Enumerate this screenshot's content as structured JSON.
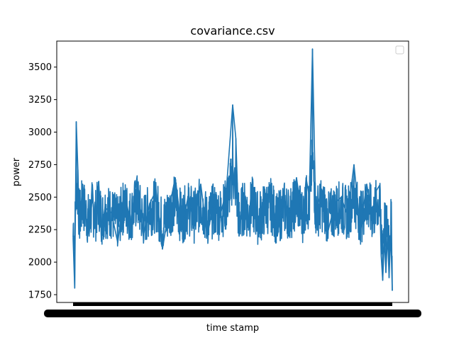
{
  "chart_data": {
    "type": "line",
    "title": "covariance.csv",
    "xlabel": "time stamp",
    "ylabel": "power",
    "ylim": [
      1690,
      3700
    ],
    "yticks": [
      1750,
      2000,
      2250,
      2500,
      2750,
      3000,
      3250,
      3500
    ],
    "legend": {
      "placement": "top-right",
      "entries": []
    },
    "series": [
      {
        "color": "#1f77b4",
        "x": [
          0,
          0.5,
          1,
          1.5,
          2,
          3,
          4,
          5,
          6,
          7,
          8,
          9,
          10,
          12,
          14,
          16,
          18,
          20,
          22,
          24,
          26,
          28,
          30,
          32,
          34,
          36,
          38,
          40,
          42,
          44,
          46,
          48,
          50,
          51,
          52,
          53,
          54,
          55,
          56,
          58,
          60,
          62,
          64,
          66,
          68,
          70,
          72,
          73,
          74,
          75,
          76,
          78,
          80,
          82,
          84,
          86,
          88,
          90,
          92,
          94,
          95,
          96,
          96.5,
          97,
          97.5,
          98,
          98.5,
          99,
          99.5,
          100
        ],
        "values": [
          2190,
          1800,
          3080,
          2710,
          2250,
          2600,
          2350,
          2200,
          2500,
          2300,
          2620,
          2250,
          2420,
          2380,
          2150,
          2550,
          2300,
          2650,
          2200,
          2450,
          2550,
          2100,
          2400,
          2650,
          2250,
          2500,
          2300,
          2600,
          2200,
          2450,
          2350,
          2550,
          3210,
          2950,
          2200,
          2450,
          2500,
          2300,
          2600,
          2250,
          2450,
          2550,
          2200,
          2500,
          2350,
          2650,
          2300,
          2650,
          2500,
          3640,
          2400,
          2550,
          2250,
          2450,
          2500,
          2350,
          2750,
          2250,
          2600,
          2300,
          2550,
          2590,
          2050,
          1860,
          2180,
          1920,
          2210,
          1880,
          2230,
          1780
        ]
      }
    ]
  }
}
